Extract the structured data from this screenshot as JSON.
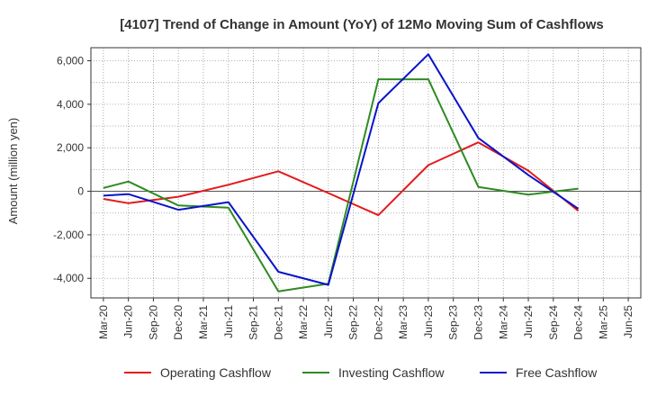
{
  "chart_data": {
    "type": "line",
    "title": "[4107]  Trend of Change in Amount (YoY) of 12Mo Moving Sum of Cashflows",
    "xlabel": "",
    "ylabel": "Amount (million yen)",
    "ylim": [
      -4900,
      6600
    ],
    "yticks": [
      -4000,
      -2000,
      0,
      2000,
      4000,
      6000
    ],
    "ytick_labels": [
      "-4,000",
      "-2,000",
      "0",
      "2,000",
      "4,000",
      "6,000"
    ],
    "grid": true,
    "legend_position": "bottom",
    "categories": [
      "Mar-20",
      "Jun-20",
      "Sep-20",
      "Dec-20",
      "Mar-21",
      "Jun-21",
      "Sep-21",
      "Dec-21",
      "Mar-22",
      "Jun-22",
      "Sep-22",
      "Dec-22",
      "Mar-23",
      "Jun-23",
      "Sep-23",
      "Dec-23",
      "Mar-24",
      "Jun-24",
      "Sep-24",
      "Dec-24",
      "Mar-25",
      "Jun-25"
    ],
    "series": [
      {
        "name": "Operating Cashflow",
        "color": "#e31a1c",
        "values": [
          -350,
          -550,
          null,
          -250,
          null,
          300,
          null,
          920,
          null,
          -80,
          null,
          -1100,
          null,
          1200,
          null,
          2250,
          null,
          950,
          null,
          -900,
          null,
          null
        ]
      },
      {
        "name": "Investing Cashflow",
        "color": "#2e8b22",
        "values": [
          150,
          450,
          null,
          -650,
          null,
          -750,
          null,
          -4600,
          null,
          -4250,
          null,
          5150,
          null,
          5150,
          null,
          200,
          null,
          -150,
          null,
          120,
          null,
          null
        ]
      },
      {
        "name": "Free Cashflow",
        "color": "#0a14c8",
        "values": [
          -200,
          -130,
          null,
          -850,
          null,
          -500,
          null,
          -3700,
          null,
          -4300,
          null,
          4050,
          null,
          6300,
          null,
          2450,
          null,
          750,
          null,
          -800,
          null,
          null
        ]
      }
    ]
  }
}
